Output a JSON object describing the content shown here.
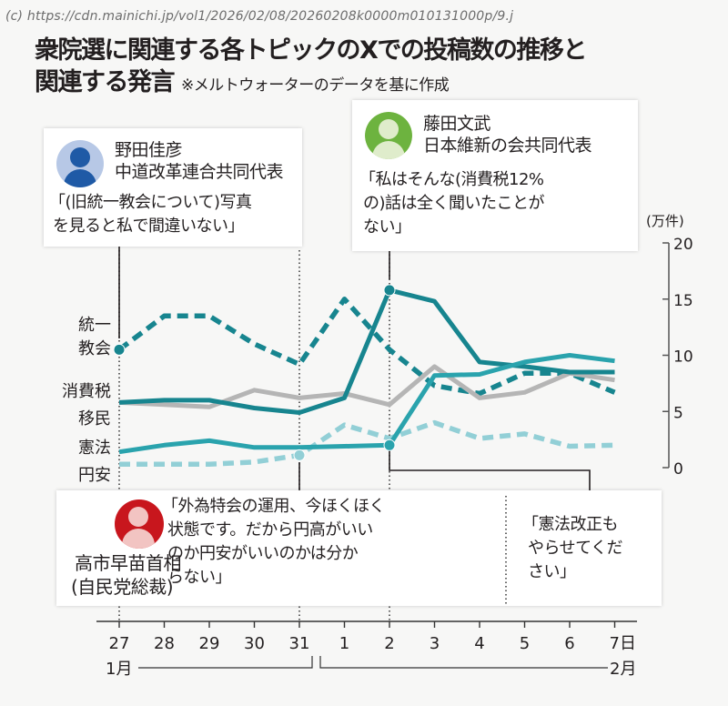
{
  "source_url": "(c) https://cdn.mainichi.jp/vol1/2026/02/08/20260208k0000m010131000p/9.j",
  "title": {
    "line1": "衆院選に関連する各トピックのXでの投稿数の推移と",
    "line2": "関連する発言",
    "note": "※メルトウォーターのデータを基に作成"
  },
  "speakers": {
    "noda": {
      "name": "野田佳彦",
      "role": "中道改革連合共同代表",
      "quote_lines": [
        "「(旧統一教会について)写真",
        "を見ると私で間違いない」"
      ],
      "avatar_color": "#1f5aa6",
      "avatar_bg": "#b7c8e6"
    },
    "fujita": {
      "name": "藤田文武",
      "role": "日本維新の会共同代表",
      "quote_lines": [
        "「私はそんな(消費税12%",
        "の)話は全く聞いたことが",
        "ない」"
      ],
      "avatar_color": "#6db33f",
      "avatar_bg": "#dfeccb"
    },
    "takaichi": {
      "name": "高市早苗首相",
      "role": "(自民党総裁)",
      "quote_lines": [
        "「外為特会の運用、今ほくほく",
        "状態です。だから円高がいい",
        "のか円安がいいのかは分か",
        "らない」"
      ],
      "quote2_lines": [
        "「憲法改正も",
        "やらせてくだ",
        "さい」"
      ],
      "avatar_color": "#c8161d",
      "avatar_bg": "#f2c4c2"
    }
  },
  "chart_data": {
    "type": "line",
    "title": "衆院選に関連する各トピックのXでの投稿数の推移と関連する発言",
    "ylabel": "(万件)",
    "xlabel": "",
    "ylim": [
      0,
      20
    ],
    "yticks": [
      0,
      5,
      10,
      15,
      20
    ],
    "grid": false,
    "categories": [
      "27",
      "28",
      "29",
      "30",
      "31",
      "1",
      "2",
      "3",
      "4",
      "5",
      "6",
      "7日"
    ],
    "month_labels": {
      "jan": "1月",
      "feb": "2月"
    },
    "legend": "inline-left",
    "series": [
      {
        "name": "統一教会",
        "label_lines": [
          "統一",
          "教会"
        ],
        "style": "dashed",
        "color": "#17858f",
        "values": [
          10.5,
          13.5,
          13.5,
          11.0,
          9.2,
          15.0,
          10.5,
          7.3,
          6.6,
          8.4,
          8.4,
          6.7
        ]
      },
      {
        "name": "移民",
        "label_lines": [
          "移民"
        ],
        "style": "solid",
        "color": "#b5b5b5",
        "values": [
          5.8,
          5.6,
          5.4,
          6.9,
          6.2,
          6.6,
          5.6,
          9.0,
          6.2,
          6.7,
          8.4,
          7.8
        ]
      },
      {
        "name": "消費税",
        "label_lines": [
          "消費税"
        ],
        "style": "solid",
        "color": "#17858f",
        "values": [
          5.8,
          6.0,
          6.0,
          5.3,
          4.9,
          6.2,
          15.8,
          14.8,
          9.4,
          9.0,
          8.5,
          8.5
        ]
      },
      {
        "name": "円安",
        "label_lines": [
          "円安"
        ],
        "style": "dashed",
        "color": "#92cfd6",
        "values": [
          0.3,
          0.3,
          0.3,
          0.5,
          1.1,
          3.8,
          2.6,
          4.0,
          2.6,
          3.0,
          1.9,
          2.0
        ]
      },
      {
        "name": "憲法",
        "label_lines": [
          "憲法"
        ],
        "style": "solid",
        "color": "#2aa3ad",
        "values": [
          1.4,
          2.0,
          2.4,
          1.8,
          1.8,
          1.9,
          2.0,
          8.2,
          8.3,
          9.4,
          10.0,
          9.5
        ]
      }
    ],
    "markers": [
      {
        "series": "統一教会",
        "index": 0
      },
      {
        "series": "消費税",
        "index": 6
      },
      {
        "series": "憲法",
        "index": 6
      },
      {
        "series": "円安",
        "index": 4
      }
    ]
  }
}
